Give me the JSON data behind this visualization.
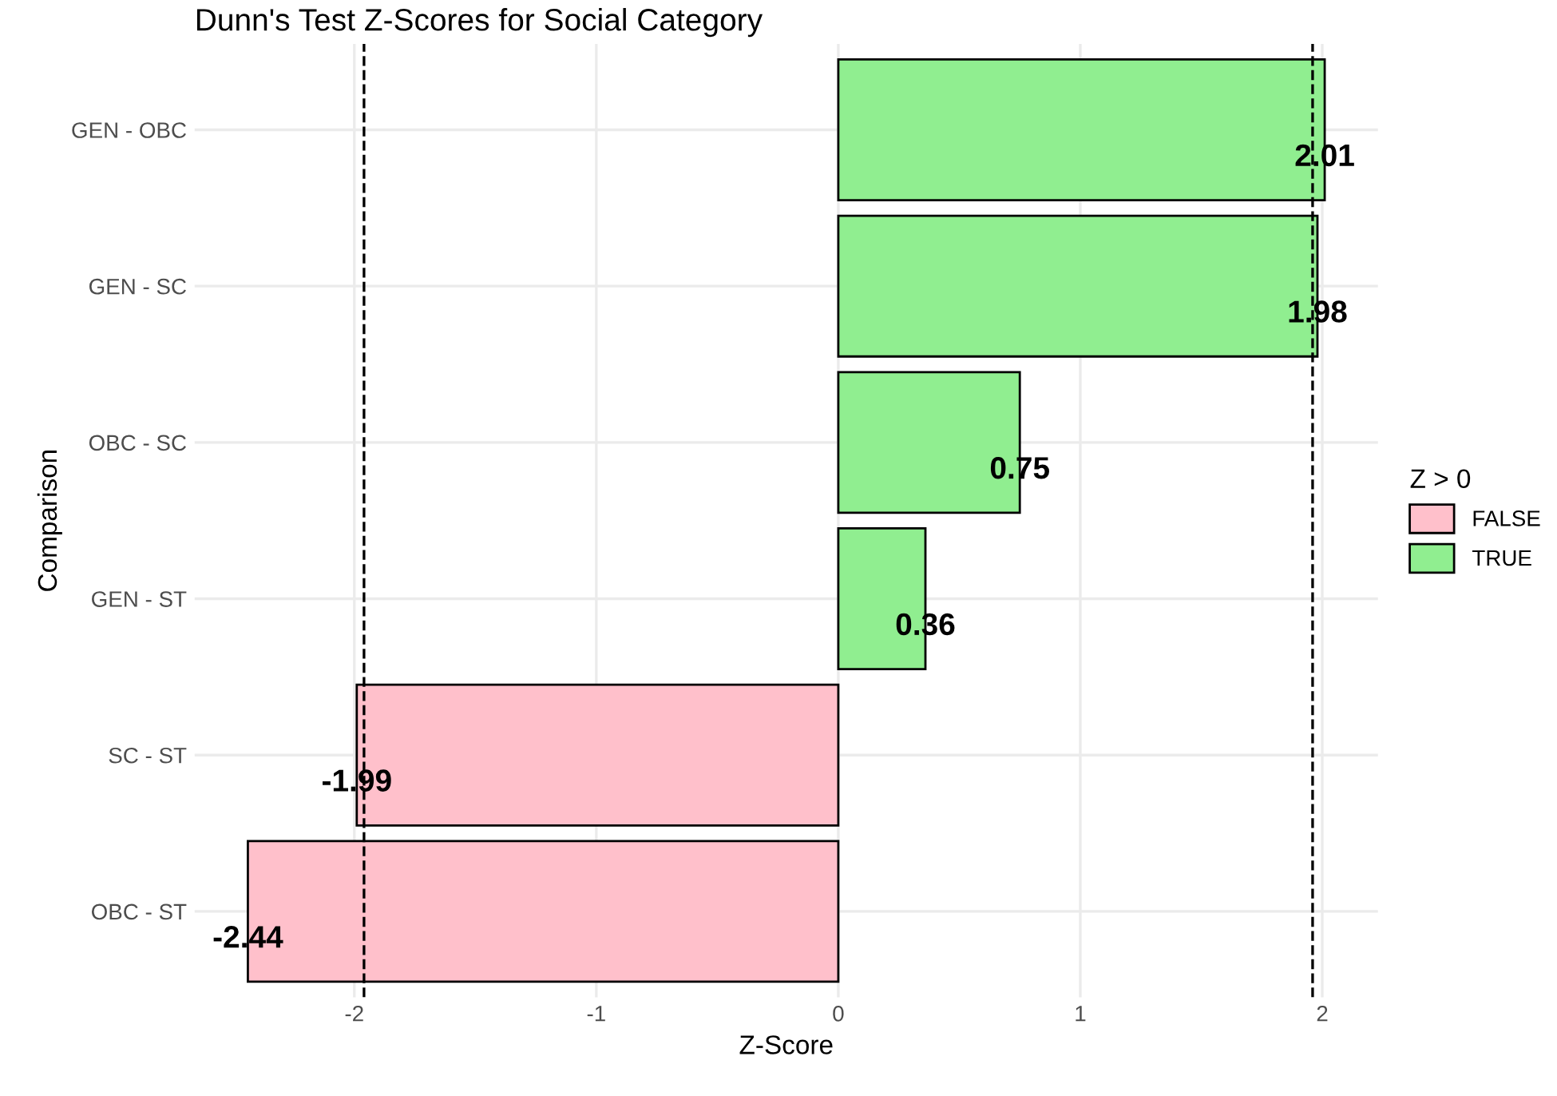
{
  "chart_data": {
    "type": "bar",
    "orientation": "horizontal",
    "title": "Dunn's Test Z-Scores for Social Category",
    "xlabel": "Z-Score",
    "ylabel": "Comparison",
    "legend_title": "Z > 0",
    "categories": [
      "GEN - OBC",
      "GEN - SC",
      "OBC - SC",
      "GEN - ST",
      "SC - ST",
      "OBC - ST"
    ],
    "series": [
      {
        "name": "FALSE",
        "color": "#ffc0cb",
        "values": [
          null,
          null,
          null,
          null,
          -1.99,
          -2.44
        ]
      },
      {
        "name": "TRUE",
        "color": "#90ee90",
        "values": [
          2.01,
          1.98,
          0.75,
          0.36,
          null,
          null
        ]
      }
    ],
    "xlim": [
      -2.66,
      2.23
    ],
    "xticks": [
      -2,
      -1,
      0,
      1,
      2
    ],
    "ref_lines": [
      {
        "axis": "x",
        "value": -1.96,
        "line_style": "dashed",
        "color": "#000000"
      },
      {
        "axis": "x",
        "value": 1.96,
        "line_style": "dashed",
        "color": "#000000"
      }
    ],
    "data_labels": true,
    "grid": true,
    "legend": "right"
  }
}
